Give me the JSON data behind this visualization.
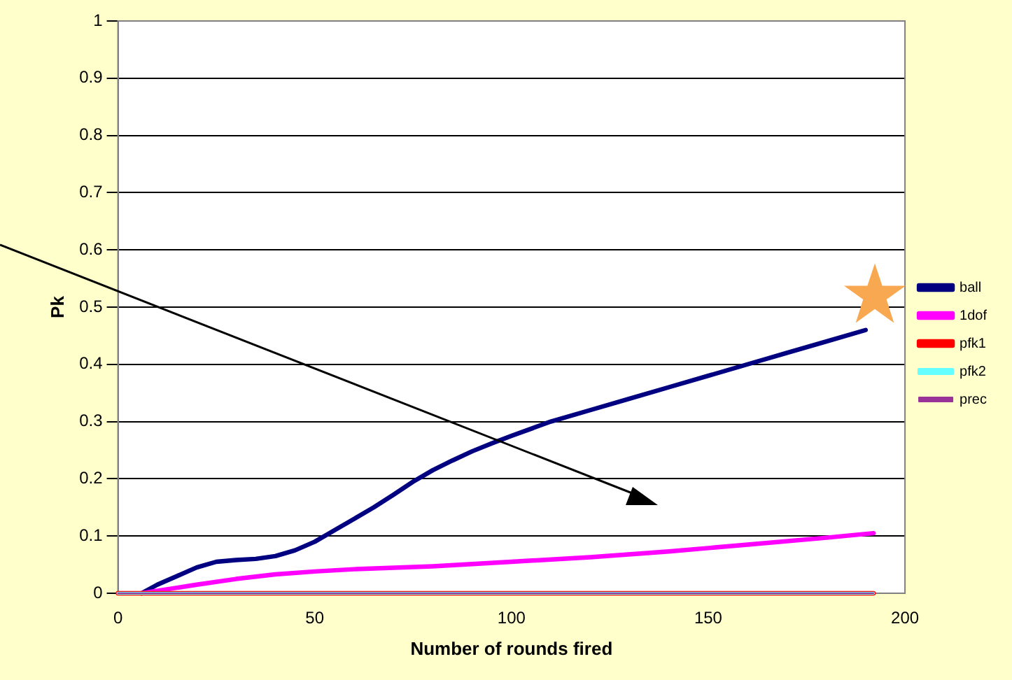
{
  "chart_data": {
    "type": "line",
    "xlabel": "Number of rounds fired",
    "ylabel": "Pk",
    "xlim": [
      0,
      200
    ],
    "xticks": [
      0,
      50,
      100,
      150,
      200
    ],
    "ylim": [
      0,
      1
    ],
    "yticks": [
      0,
      0.1,
      0.2,
      0.3,
      0.4,
      0.5,
      0.6,
      0.7,
      0.8,
      0.9,
      1
    ],
    "grid": "y",
    "legend": "right",
    "marker": "none",
    "line_style": "solid",
    "series": [
      {
        "name": "ball",
        "color": "#000080",
        "x": [
          6,
          10,
          15,
          20,
          25,
          30,
          35,
          40,
          45,
          50,
          55,
          60,
          65,
          70,
          75,
          80,
          85,
          90,
          95,
          100,
          110,
          120,
          130,
          140,
          150,
          160,
          170,
          180,
          190
        ],
        "values": [
          0,
          0.015,
          0.03,
          0.045,
          0.055,
          0.058,
          0.06,
          0.065,
          0.075,
          0.09,
          0.11,
          0.13,
          0.15,
          0.172,
          0.195,
          0.215,
          0.232,
          0.248,
          0.262,
          0.275,
          0.3,
          0.32,
          0.34,
          0.36,
          0.38,
          0.4,
          0.42,
          0.44,
          0.46
        ]
      },
      {
        "name": "1dof",
        "color": "#ff00ff",
        "x": [
          6,
          20,
          30,
          40,
          50,
          60,
          80,
          100,
          120,
          140,
          160,
          180,
          192
        ],
        "values": [
          0,
          0.015,
          0.025,
          0.033,
          0.038,
          0.042,
          0.047,
          0.055,
          0.063,
          0.073,
          0.085,
          0.097,
          0.105
        ]
      },
      {
        "name": "pfk1",
        "color": "#ff0000",
        "x": [
          0,
          192
        ],
        "values": [
          0,
          0
        ]
      },
      {
        "name": "pfk2",
        "color": "#66ffff",
        "x": [
          0,
          192
        ],
        "values": [
          0,
          0
        ]
      },
      {
        "name": "prec",
        "color": "#993399",
        "x": [
          0,
          192
        ],
        "values": [
          0,
          0
        ]
      }
    ]
  }
}
